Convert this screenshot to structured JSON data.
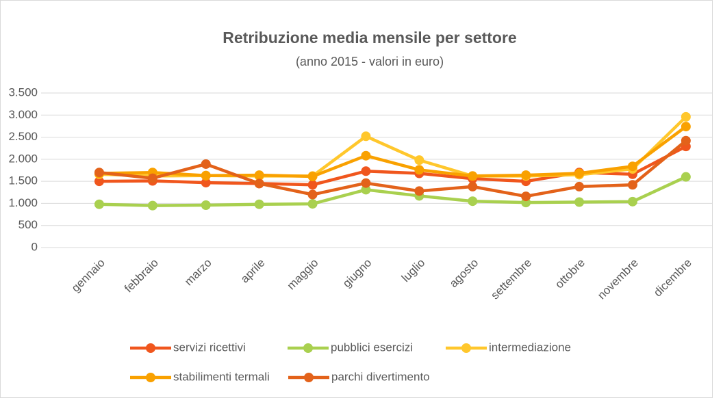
{
  "chart_data": {
    "type": "line",
    "title": "Retribuzione media mensile per settore",
    "subtitle": "(anno 2015 - valori in euro)",
    "categories": [
      "gennaio",
      "febbraio",
      "marzo",
      "aprile",
      "maggio",
      "giugno",
      "luglio",
      "agosto",
      "settembre",
      "ottobre",
      "novembre",
      "dicembre"
    ],
    "series": [
      {
        "name": "servizi ricettivi",
        "color": "#f0561d",
        "values": [
          1500,
          1510,
          1470,
          1450,
          1420,
          1730,
          1680,
          1560,
          1500,
          1700,
          1660,
          2290
        ]
      },
      {
        "name": "pubblici esercizi",
        "color": "#a9d04f",
        "values": [
          980,
          950,
          960,
          980,
          990,
          1310,
          1170,
          1050,
          1020,
          1030,
          1040,
          1600
        ]
      },
      {
        "name": "intermediazione",
        "color": "#ffc72c",
        "values": [
          1660,
          1620,
          1630,
          1620,
          1620,
          2520,
          1980,
          1620,
          1620,
          1650,
          1780,
          2960
        ]
      },
      {
        "name": "stabilimenti termali",
        "color": "#f9a100",
        "values": [
          1680,
          1700,
          1630,
          1640,
          1610,
          2080,
          1760,
          1620,
          1640,
          1680,
          1840,
          2740
        ]
      },
      {
        "name": "parchi divertimento",
        "color": "#e3621a",
        "values": [
          1700,
          1570,
          1890,
          1450,
          1200,
          1460,
          1280,
          1380,
          1160,
          1380,
          1420,
          2420
        ]
      }
    ],
    "ylim": [
      0,
      3500
    ],
    "yticks": [
      0,
      500,
      {
        "value": 1000,
        "label": "1.000"
      },
      {
        "value": 1500,
        "label": "1.500"
      },
      {
        "value": 2000,
        "label": "2.000"
      },
      {
        "value": 2500,
        "label": "2.500"
      },
      {
        "value": 3000,
        "label": "3.000"
      },
      {
        "value": 3500,
        "label": "3.500"
      }
    ],
    "grid": true,
    "legend": "bottom"
  }
}
